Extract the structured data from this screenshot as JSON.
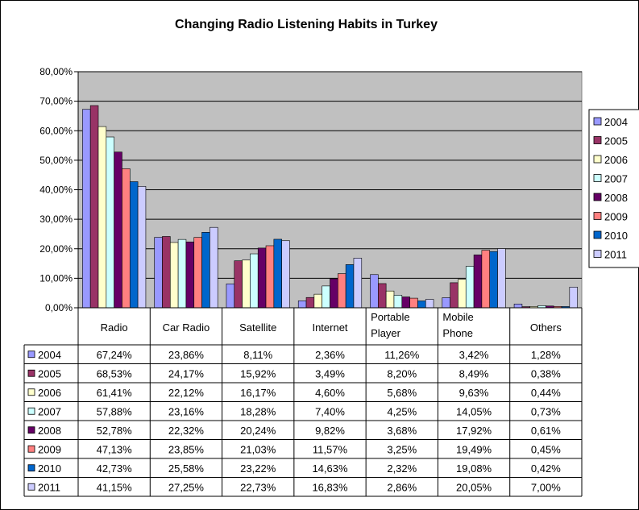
{
  "chart_data": {
    "type": "bar",
    "title": "Changing Radio Listening Habits in Turkey",
    "xlabel": "",
    "ylabel": "",
    "ylim": [
      0,
      80
    ],
    "yticks": [
      "0,00%",
      "10,00%",
      "20,00%",
      "30,00%",
      "40,00%",
      "50,00%",
      "60,00%",
      "70,00%",
      "80,00%"
    ],
    "grid": true,
    "legend_position": "right",
    "categories": [
      [
        "Radio"
      ],
      [
        "Car Radio"
      ],
      [
        "Satellite"
      ],
      [
        "Internet"
      ],
      [
        "Portable",
        "Player"
      ],
      [
        "Mobile",
        "Phone"
      ],
      [
        "Others"
      ]
    ],
    "series": [
      {
        "name": "2004",
        "color": "#9999ff",
        "values": [
          67.24,
          23.86,
          8.11,
          2.36,
          11.26,
          3.42,
          1.28
        ],
        "labels": [
          "67,24%",
          "23,86%",
          "8,11%",
          "2,36%",
          "11,26%",
          "3,42%",
          "1,28%"
        ]
      },
      {
        "name": "2005",
        "color": "#993366",
        "values": [
          68.53,
          24.17,
          15.92,
          3.49,
          8.2,
          8.49,
          0.38
        ],
        "labels": [
          "68,53%",
          "24,17%",
          "15,92%",
          "3,49%",
          "8,20%",
          "8,49%",
          "0,38%"
        ]
      },
      {
        "name": "2006",
        "color": "#ffffcc",
        "values": [
          61.41,
          22.12,
          16.17,
          4.6,
          5.68,
          9.63,
          0.44
        ],
        "labels": [
          "61,41%",
          "22,12%",
          "16,17%",
          "4,60%",
          "5,68%",
          "9,63%",
          "0,44%"
        ]
      },
      {
        "name": "2007",
        "color": "#ccffff",
        "values": [
          57.88,
          23.16,
          18.28,
          7.4,
          4.25,
          14.05,
          0.73
        ],
        "labels": [
          "57,88%",
          "23,16%",
          "18,28%",
          "7,40%",
          "4,25%",
          "14,05%",
          "0,73%"
        ]
      },
      {
        "name": "2008",
        "color": "#660066",
        "values": [
          52.78,
          22.32,
          20.24,
          9.82,
          3.68,
          17.92,
          0.61
        ],
        "labels": [
          "52,78%",
          "22,32%",
          "20,24%",
          "9,82%",
          "3,68%",
          "17,92%",
          "0,61%"
        ]
      },
      {
        "name": "2009",
        "color": "#ff8080",
        "values": [
          47.13,
          23.85,
          21.03,
          11.57,
          3.25,
          19.49,
          0.45
        ],
        "labels": [
          "47,13%",
          "23,85%",
          "21,03%",
          "11,57%",
          "3,25%",
          "19,49%",
          "0,45%"
        ]
      },
      {
        "name": "2010",
        "color": "#0066cc",
        "values": [
          42.73,
          25.58,
          23.22,
          14.63,
          2.32,
          19.08,
          0.42
        ],
        "labels": [
          "42,73%",
          "25,58%",
          "23,22%",
          "14,63%",
          "2,32%",
          "19,08%",
          "0,42%"
        ]
      },
      {
        "name": "2011",
        "color": "#ccccff",
        "values": [
          41.15,
          27.25,
          22.73,
          16.83,
          2.86,
          20.05,
          7.0
        ],
        "labels": [
          "41,15%",
          "27,25%",
          "22,73%",
          "16,83%",
          "2,86%",
          "20,05%",
          "7,00%"
        ]
      }
    ],
    "plot_background": "#c0c0c0"
  }
}
